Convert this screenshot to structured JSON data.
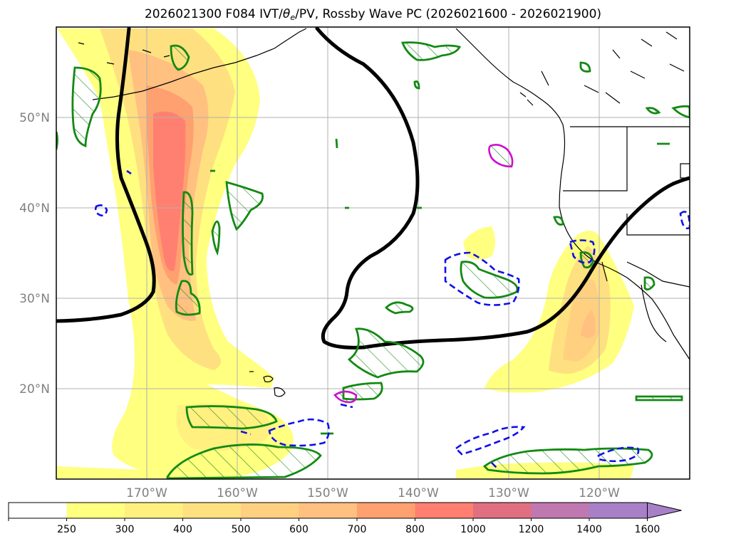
{
  "title": {
    "prefix": "2026021300 F084 IVT/",
    "theta": "θ",
    "theta_sub": "e",
    "suffix": "/PV, Rossby Wave PC (2026021600 - 2026021900)"
  },
  "map": {
    "lon_range": [
      -180,
      -110
    ],
    "lat_range": [
      10,
      60
    ],
    "projection": "PlateCarree",
    "grid": true,
    "latitude_ticks": [
      {
        "value": 50,
        "label": "50°N"
      },
      {
        "value": 40,
        "label": "40°N"
      },
      {
        "value": 30,
        "label": "30°N"
      },
      {
        "value": 20,
        "label": "20°N"
      }
    ],
    "longitude_ticks": [
      {
        "value": -170,
        "label": "170°W"
      },
      {
        "value": -160,
        "label": "160°W"
      },
      {
        "value": -150,
        "label": "150°W"
      },
      {
        "value": -140,
        "label": "140°W"
      },
      {
        "value": -130,
        "label": "130°W"
      },
      {
        "value": -120,
        "label": "120°W"
      }
    ],
    "layers": {
      "ivt_fill": "IVT shaded contours (yellow-orange-red)",
      "rossby_pc_contour": "thick black contour",
      "theta_e_hatched": "green hatched contours",
      "pv_dashed": "blue dashed contours",
      "magenta_contour": "magenta contours"
    }
  },
  "colorbar": {
    "levels": [
      "250",
      "300",
      "400",
      "500",
      "600",
      "700",
      "800",
      "1000",
      "1200",
      "1400",
      "1600"
    ],
    "colors": [
      "#ffffff",
      "#ffff80",
      "#fff080",
      "#ffe080",
      "#ffd080",
      "#ffc080",
      "#ffa070",
      "#ff8070",
      "#e07080",
      "#c078b0",
      "#a880c8"
    ],
    "extend": "max"
  }
}
